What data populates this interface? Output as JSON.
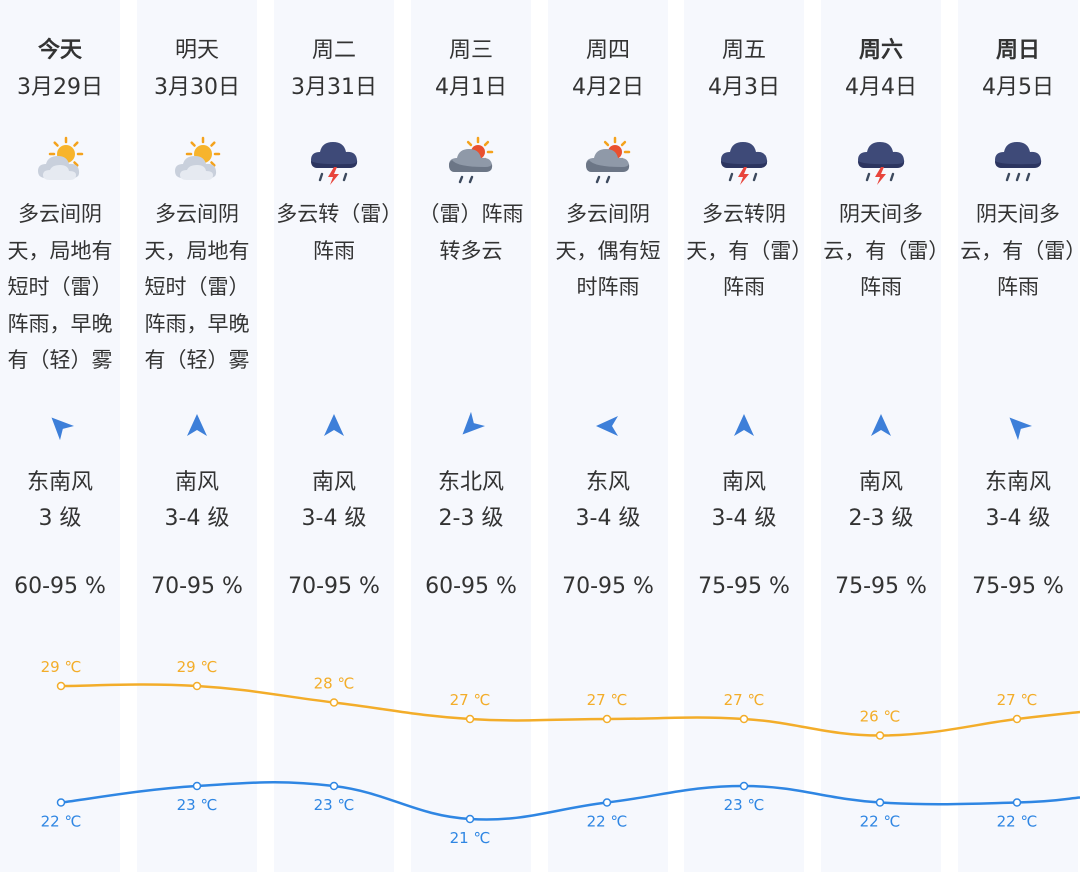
{
  "colors": {
    "high": "#f3ad2a",
    "low": "#2f86e3",
    "column_bg": "#f6f8fd"
  },
  "days": [
    {
      "name": "今天",
      "bold": true,
      "date": "3月29日",
      "icon": "partly-cloudy-sun-icon",
      "desc": "多云间阴天，局地有短时（雷）阵雨，早晚有（轻）雾",
      "wind_dir": "东南风",
      "wind_level": "3 级",
      "wind_icon": "wind-arrow-southeast-icon",
      "wind_rotation": -45,
      "humidity": "60-95 %",
      "high_label": "29 ℃",
      "low_label": "22 ℃"
    },
    {
      "name": "明天",
      "bold": false,
      "date": "3月30日",
      "icon": "partly-cloudy-sun-icon",
      "desc": "多云间阴天，局地有短时（雷）阵雨，早晚有（轻）雾",
      "wind_dir": "南风",
      "wind_level": "3-4 级",
      "wind_icon": "wind-arrow-south-icon",
      "wind_rotation": 0,
      "humidity": "70-95 %",
      "high_label": "29 ℃",
      "low_label": "23 ℃"
    },
    {
      "name": "周二",
      "bold": false,
      "date": "3月31日",
      "icon": "thunderstorm-cloud-icon",
      "desc": "多云转（雷）阵雨",
      "wind_dir": "南风",
      "wind_level": "3-4 级",
      "wind_icon": "wind-arrow-south-icon",
      "wind_rotation": 0,
      "humidity": "70-95 %",
      "high_label": "28 ℃",
      "low_label": "23 ℃"
    },
    {
      "name": "周三",
      "bold": false,
      "date": "4月1日",
      "icon": "shower-sun-cloud-icon",
      "desc": "（雷）阵雨转多云",
      "wind_dir": "东北风",
      "wind_level": "2-3 级",
      "wind_icon": "wind-arrow-northeast-icon",
      "wind_rotation": -135,
      "humidity": "60-95 %",
      "high_label": "27 ℃",
      "low_label": "21 ℃"
    },
    {
      "name": "周四",
      "bold": false,
      "date": "4月2日",
      "icon": "shower-sun-cloud-icon",
      "desc": "多云间阴天，偶有短时阵雨",
      "wind_dir": "东风",
      "wind_level": "3-4 级",
      "wind_icon": "wind-arrow-east-icon",
      "wind_rotation": -90,
      "humidity": "70-95 %",
      "high_label": "27 ℃",
      "low_label": "22 ℃"
    },
    {
      "name": "周五",
      "bold": false,
      "date": "4月3日",
      "icon": "thunderstorm-cloud-icon",
      "desc": "多云转阴天，有（雷）阵雨",
      "wind_dir": "南风",
      "wind_level": "3-4 级",
      "wind_icon": "wind-arrow-south-icon",
      "wind_rotation": 0,
      "humidity": "75-95 %",
      "high_label": "27 ℃",
      "low_label": "23 ℃"
    },
    {
      "name": "周六",
      "bold": true,
      "date": "4月4日",
      "icon": "thunderstorm-cloud-icon",
      "desc": "阴天间多云，有（雷）阵雨",
      "wind_dir": "南风",
      "wind_level": "2-3 级",
      "wind_icon": "wind-arrow-south-icon",
      "wind_rotation": 0,
      "humidity": "75-95 %",
      "high_label": "26 ℃",
      "low_label": "22 ℃"
    },
    {
      "name": "周日",
      "bold": true,
      "date": "4月5日",
      "icon": "rain-cloud-icon",
      "desc": "阴天间多云，有（雷）阵雨",
      "wind_dir": "东南风",
      "wind_level": "3-4 级",
      "wind_icon": "wind-arrow-southeast-icon",
      "wind_rotation": -45,
      "humidity": "75-95 %",
      "high_label": "27 ℃",
      "low_label": "22 ℃"
    }
  ],
  "chart_data": {
    "type": "line",
    "categories": [
      "3月29日",
      "3月30日",
      "3月31日",
      "4月1日",
      "4月2日",
      "4月3日",
      "4月4日",
      "4月5日"
    ],
    "series": [
      {
        "values": [
          29,
          29,
          28,
          27,
          27,
          27,
          26,
          27
        ],
        "color": "#f3ad2a"
      },
      {
        "values": [
          22,
          23,
          23,
          21,
          22,
          23,
          22,
          22
        ],
        "color": "#2f86e3"
      }
    ],
    "ylabel": "℃"
  }
}
